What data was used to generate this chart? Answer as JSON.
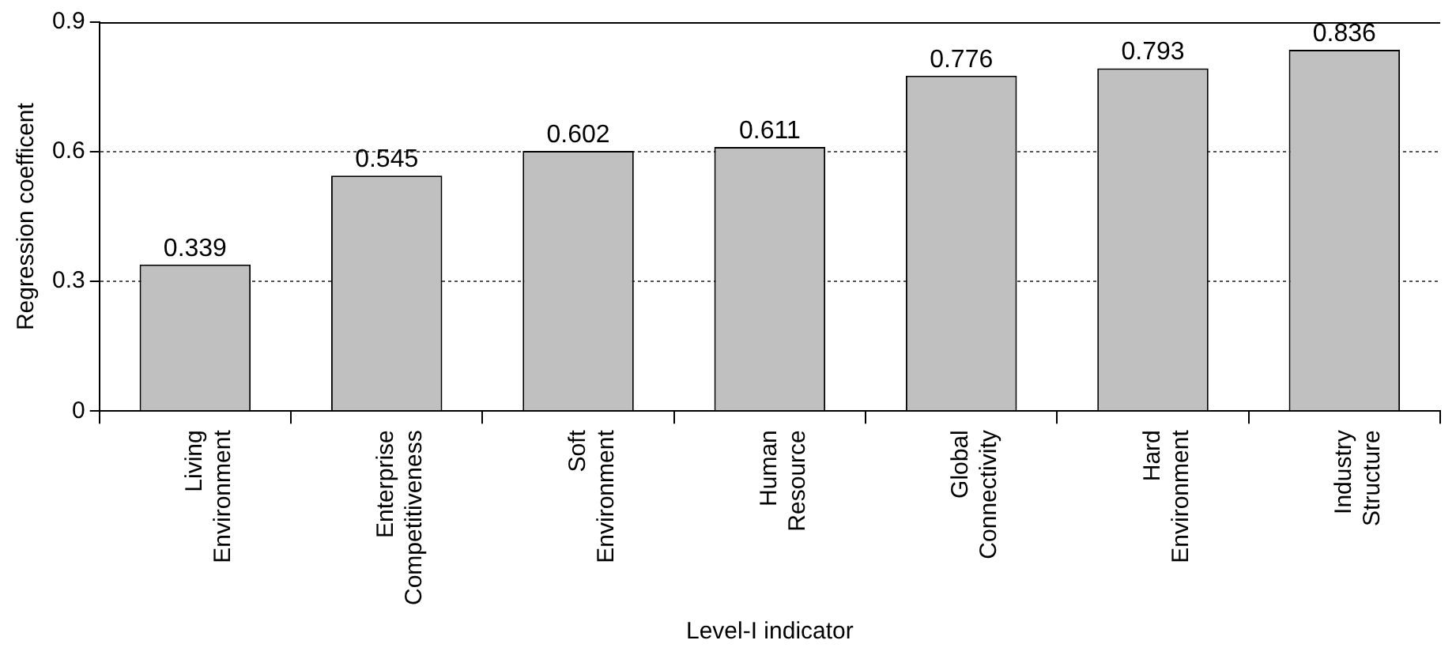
{
  "chart_data": {
    "type": "bar",
    "xlabel": "Level-I indicator",
    "ylabel": "Regression coefficent",
    "categories": [
      "Living\nEnvironment",
      "Enterprise\nCompetitiveness",
      "Soft\nEnvironment",
      "Human\nResource",
      "Global\nConnectivity",
      "Hard\nEnvironment",
      "Industry\nStructure"
    ],
    "values": [
      0.339,
      0.545,
      0.602,
      0.611,
      0.776,
      0.793,
      0.836
    ],
    "color": "#c0c0c0",
    "ylim": [
      0,
      0.9
    ],
    "yticks": [
      0,
      0.3,
      0.6,
      0.9
    ],
    "grid": "y",
    "data_labels": true
  }
}
